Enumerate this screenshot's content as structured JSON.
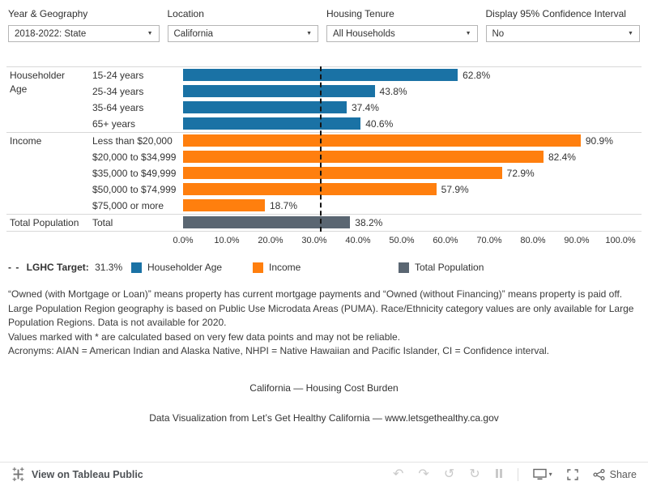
{
  "filters": [
    {
      "label": "Year & Geography",
      "value": "2018-2022: State"
    },
    {
      "label": "Location",
      "value": "California"
    },
    {
      "label": "Housing Tenure",
      "value": "All Households"
    },
    {
      "label": "Display 95% Confidence Interval",
      "value": "No"
    }
  ],
  "chart_data": {
    "type": "bar",
    "orientation": "horizontal",
    "value_suffix": "%",
    "xlim": [
      0,
      100
    ],
    "x_ticks": [
      "0.0%",
      "10.0%",
      "20.0%",
      "30.0%",
      "40.0%",
      "50.0%",
      "60.0%",
      "70.0%",
      "80.0%",
      "90.0%",
      "100.0%"
    ],
    "groups": [
      {
        "name": "Householder Age",
        "color": "#1a72a5",
        "rows": [
          {
            "label": "15-24 years",
            "value": 62.8
          },
          {
            "label": "25-34 years",
            "value": 43.8
          },
          {
            "label": "35-64 years",
            "value": 37.4
          },
          {
            "label": "65+ years",
            "value": 40.6
          }
        ]
      },
      {
        "name": "Income",
        "color": "#ff7f0e",
        "rows": [
          {
            "label": "Less than $20,000",
            "value": 90.9
          },
          {
            "label": "$20,000 to $34,999",
            "value": 82.4
          },
          {
            "label": "$35,000 to $49,999",
            "value": 72.9
          },
          {
            "label": "$50,000 to $74,999",
            "value": 57.9
          },
          {
            "label": "$75,000 or more",
            "value": 18.7
          }
        ]
      },
      {
        "name": "Total Population",
        "color": "#5a6672",
        "rows": [
          {
            "label": "Total",
            "value": 38.2
          }
        ]
      }
    ],
    "target": {
      "dashes": "- -",
      "label": "LGHC Target:",
      "value": "31.3%",
      "numeric": 31.3
    }
  },
  "notes": [
    "“Owned (with Mortgage or Loan)” means property has current mortgage payments and “Owned (without Financing)” means property is paid off.",
    "Large Population Region geography is based on Public Use Microdata Areas (PUMA). Race/Ethnicity category values are only available for Large Population Regions. Data is not available for 2020.",
    "Values marked with * are calculated based on very few data points and may not be reliable.",
    "Acronyms: AIAN = American Indian and Alaska Native, NHPI = Native Hawaiian and Pacific Islander, CI = Confidence interval."
  ],
  "chart_title": "California — Housing Cost Burden",
  "attribution": "Data Visualization from Let’s Get Healthy California — www.letsgethealthy.ca.gov",
  "toolbar": {
    "view_label": "View on Tableau Public",
    "share_label": "Share",
    "icons": {
      "undo": "↶",
      "redo": "↷",
      "revert": "↺",
      "refresh": "↻",
      "dropdown_caret": "▼",
      "download_caret": "▾"
    }
  }
}
